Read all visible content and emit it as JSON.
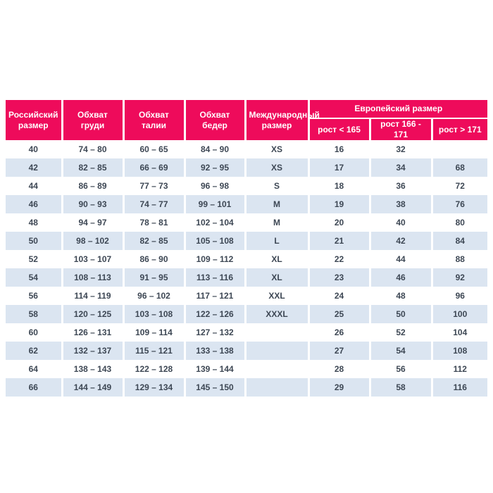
{
  "header": {
    "russian_size": "Российский размер",
    "chest": "Обхват груди",
    "waist": "Обхват талии",
    "hips": "Обхват бедер",
    "international_size": "Международный размер",
    "european_size_group": "Европейский размер",
    "height_lt_165": "рост < 165",
    "height_166_171": "рост 166 - 171",
    "height_gt_171": "рост > 171"
  },
  "colors": {
    "header_bg": "#ee0b5b",
    "header_text": "#ffffff",
    "row_bg": "#ffffff",
    "row_alt_bg": "#dbe5f1",
    "cell_text": "#3d4754"
  },
  "chart_data": {
    "type": "table",
    "title": "",
    "columns": [
      "Российский размер",
      "Обхват груди",
      "Обхват талии",
      "Обхват бедер",
      "Международный размер",
      "рост < 165",
      "рост 166 - 171",
      "рост > 171"
    ],
    "group_header": {
      "label": "Европейский размер",
      "covers_columns": [
        "рост < 165",
        "рост 166 - 171",
        "рост > 171"
      ]
    },
    "rows": [
      [
        "40",
        "74 – 80",
        "60 – 65",
        "84 – 90",
        "XS",
        "16",
        "32",
        ""
      ],
      [
        "42",
        "82 – 85",
        "66 – 69",
        "92 – 95",
        "XS",
        "17",
        "34",
        "68"
      ],
      [
        "44",
        "86 – 89",
        "77 – 73",
        "96 – 98",
        "S",
        "18",
        "36",
        "72"
      ],
      [
        "46",
        "90 – 93",
        "74 – 77",
        "99 – 101",
        "M",
        "19",
        "38",
        "76"
      ],
      [
        "48",
        "94 – 97",
        "78 – 81",
        "102 – 104",
        "M",
        "20",
        "40",
        "80"
      ],
      [
        "50",
        "98 – 102",
        "82 – 85",
        "105 – 108",
        "L",
        "21",
        "42",
        "84"
      ],
      [
        "52",
        "103 – 107",
        "86 – 90",
        "109 – 112",
        "XL",
        "22",
        "44",
        "88"
      ],
      [
        "54",
        "108 – 113",
        "91 – 95",
        "113 – 116",
        "XL",
        "23",
        "46",
        "92"
      ],
      [
        "56",
        "114 – 119",
        "96 – 102",
        "117 – 121",
        "XXL",
        "24",
        "48",
        "96"
      ],
      [
        "58",
        "120 – 125",
        "103 – 108",
        "122 – 126",
        "XXXL",
        "25",
        "50",
        "100"
      ],
      [
        "60",
        "126 – 131",
        "109 – 114",
        "127 – 132",
        "",
        "26",
        "52",
        "104"
      ],
      [
        "62",
        "132 – 137",
        "115 – 121",
        "133 – 138",
        "",
        "27",
        "54",
        "108"
      ],
      [
        "64",
        "138 – 143",
        "122 – 128",
        "139 – 144",
        "",
        "28",
        "56",
        "112"
      ],
      [
        "66",
        "144 – 149",
        "129 – 134",
        "145 – 150",
        "",
        "29",
        "58",
        "116"
      ]
    ]
  }
}
